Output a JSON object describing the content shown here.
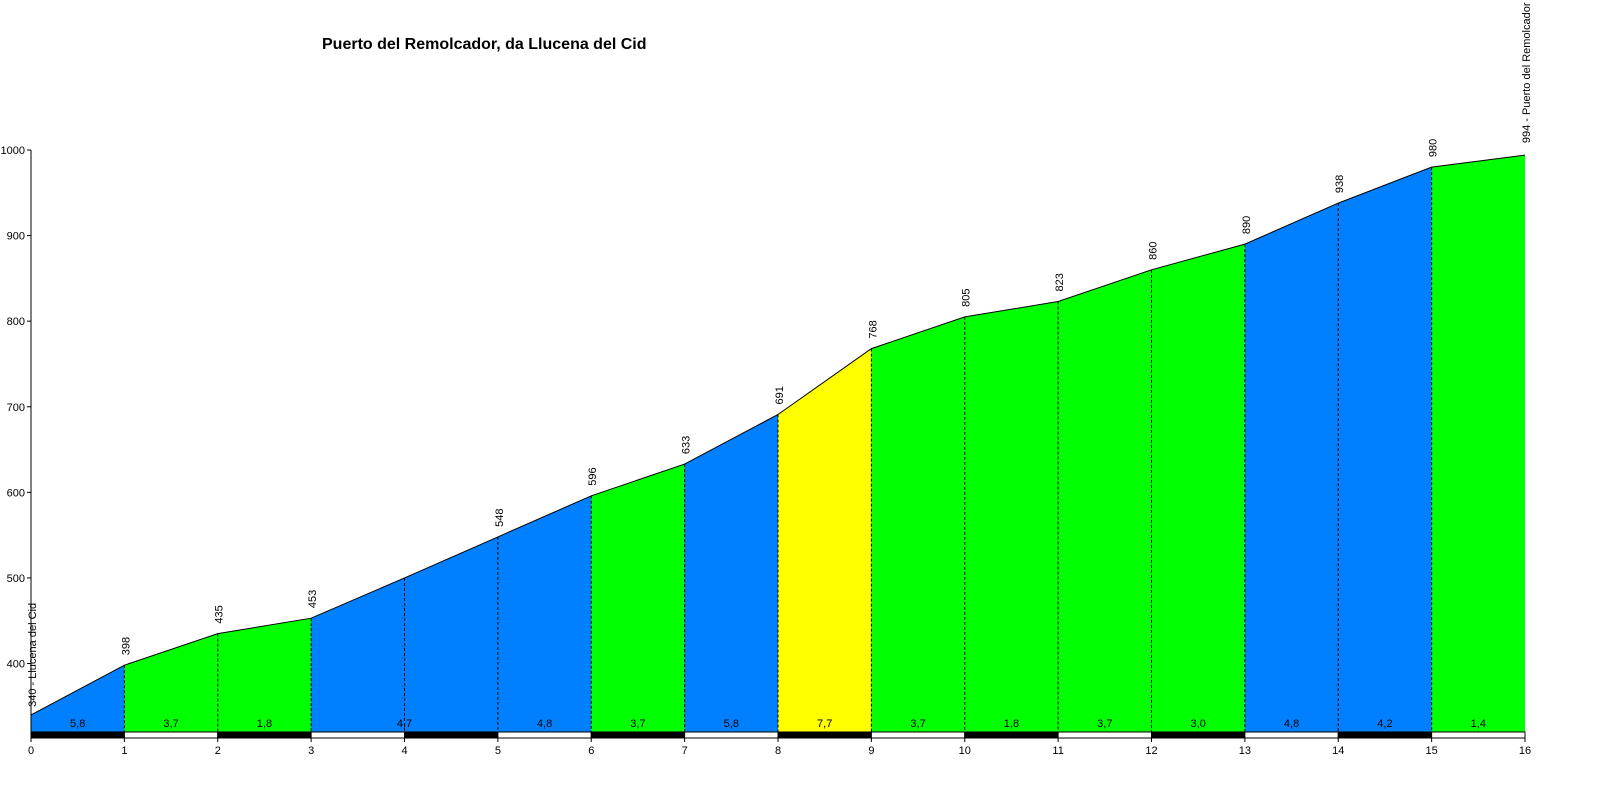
{
  "chart_data": {
    "type": "area",
    "title": "Puerto del Remolcador, da Llucena del Cid",
    "xlabel": "",
    "ylabel": "",
    "xlim": [
      0,
      16
    ],
    "ylim": [
      320,
      1000
    ],
    "x_ticks": [
      "0",
      "1",
      "2",
      "3",
      "4",
      "5",
      "6",
      "7",
      "8",
      "9",
      "10",
      "11",
      "12",
      "13",
      "14",
      "15",
      "16"
    ],
    "y_ticks": [
      "400",
      "500",
      "600",
      "700",
      "800",
      "900",
      "1000"
    ],
    "x": [
      0,
      1,
      2,
      3,
      4,
      5,
      6,
      7,
      8,
      9,
      10,
      11,
      12,
      13,
      14,
      15,
      16
    ],
    "elevation": [
      340,
      398,
      435,
      453,
      500,
      548,
      596,
      633,
      691,
      768,
      805,
      823,
      860,
      890,
      938,
      980,
      994
    ],
    "point_labels": [
      "340 - Llucena del Cid",
      "398",
      "435",
      "453",
      "",
      "548",
      "596",
      "633",
      "691",
      "768",
      "805",
      "823",
      "860",
      "890",
      "938",
      "980",
      "994 - Puerto del Remolcador"
    ],
    "segments": [
      {
        "from": 0,
        "to": 1,
        "gradient": "5,8",
        "color": "#0080ff"
      },
      {
        "from": 1,
        "to": 2,
        "gradient": "3,7",
        "color": "#00ff00"
      },
      {
        "from": 2,
        "to": 3,
        "gradient": "1,8",
        "color": "#00ff00"
      },
      {
        "from": 3,
        "to": 5,
        "gradient": "4,7",
        "color": "#0080ff"
      },
      {
        "from": 5,
        "to": 6,
        "gradient": "4,8",
        "color": "#0080ff"
      },
      {
        "from": 6,
        "to": 7,
        "gradient": "3,7",
        "color": "#00ff00"
      },
      {
        "from": 7,
        "to": 8,
        "gradient": "5,8",
        "color": "#0080ff"
      },
      {
        "from": 8,
        "to": 9,
        "gradient": "7,7",
        "color": "#ffff00"
      },
      {
        "from": 9,
        "to": 10,
        "gradient": "3,7",
        "color": "#00ff00"
      },
      {
        "from": 10,
        "to": 11,
        "gradient": "1,8",
        "color": "#00ff00"
      },
      {
        "from": 11,
        "to": 12,
        "gradient": "3,7",
        "color": "#00ff00"
      },
      {
        "from": 12,
        "to": 13,
        "gradient": "3,0",
        "color": "#00ff00"
      },
      {
        "from": 13,
        "to": 14,
        "gradient": "4,8",
        "color": "#0080ff"
      },
      {
        "from": 14,
        "to": 15,
        "gradient": "4,2",
        "color": "#0080ff"
      },
      {
        "from": 15,
        "to": 16,
        "gradient": "1,4",
        "color": "#00ff00"
      }
    ],
    "grid": false,
    "legend": "none"
  }
}
